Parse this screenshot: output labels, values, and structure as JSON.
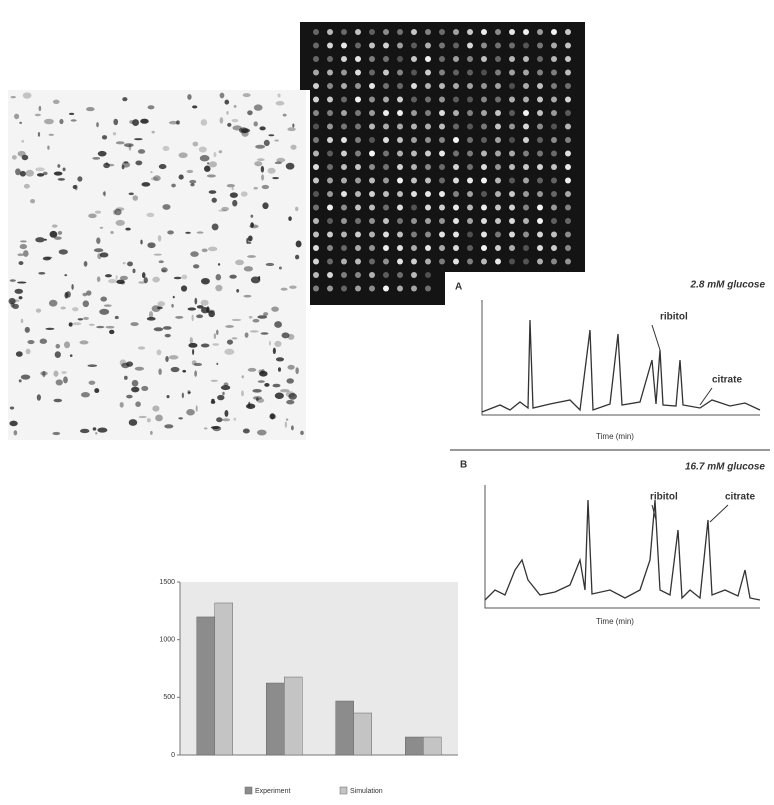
{
  "panel_a": {
    "label": "A",
    "condition": "2.8 mM glucose",
    "annotations": [
      "ribitol",
      "citrate"
    ],
    "x_label": "Time (min)"
  },
  "panel_b": {
    "label": "B",
    "condition": "16.7 mM glucose",
    "annotations": [
      "ribitol",
      "citrate"
    ],
    "x_label": "Time (min)"
  },
  "chart_data": {
    "type": "bar",
    "categories": [
      null,
      null,
      null,
      null
    ],
    "series": [
      {
        "name": "Experiment",
        "color": "#8c8c8c",
        "values": [
          1197,
          624,
          468,
          156
        ]
      },
      {
        "name": "Simulation",
        "color": "#c4c4c4",
        "values": [
          1318,
          676,
          364,
          156
        ]
      }
    ],
    "ylim": [
      0,
      1500
    ],
    "yticks": [
      0,
      500,
      1000,
      1500
    ],
    "grid": false
  }
}
